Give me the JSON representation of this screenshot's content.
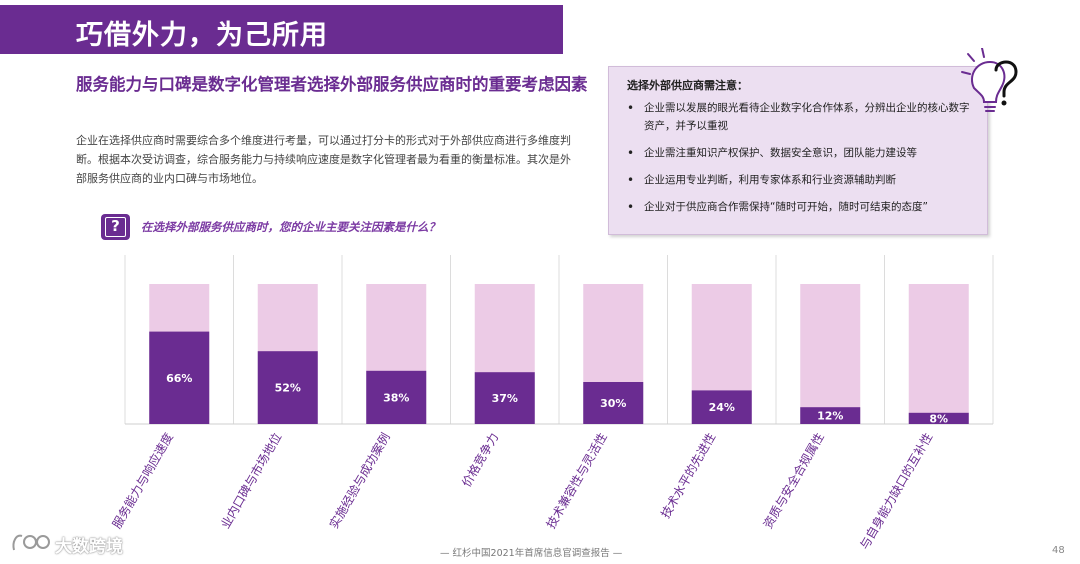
{
  "title": "巧借外力，为己所用",
  "headline": "服务能力与口碑是数字化管理者选择外部服务供应商时的重要考虑因素",
  "body_text": "企业在选择供应商时需要综合多个维度进行考量，可以通过打分卡的形式对于外部供应商进行多维度判断。根据本次受访调查，综合服务能力与持续响应速度是数字化管理者最为看重的衡量标准。其次是外部服务供应商的业内口碑与市场地位。",
  "question_icon": "?",
  "question": "在选择外部服务供应商时，您的企业主要关注因素是什么？",
  "note": {
    "title": "选择外部供应商需注意：",
    "items": [
      "企业需以发展的眼光看待企业数字化合作体系，分辨出企业的核心数字资产，并予以重视",
      "企业需注重知识产权保护、数据安全意识，团队能力建设等",
      "企业运用专业判断，利用专家体系和行业资源辅助判断",
      "企业对于供应商合作需保持“随时可开始，随时可结束的态度”"
    ]
  },
  "chart_data": {
    "type": "bar",
    "title": "在选择外部服务供应商时，您的企业主要关注因素是什么？",
    "categories": [
      "服务能力与响应速度",
      "业内口碑与市场地位",
      "实施经验与成功案例",
      "价格竞争力",
      "技术兼容性与灵活性",
      "技术水平的先进性",
      "资质与安全合规属性",
      "与自身能力缺口的互补性"
    ],
    "values": [
      66,
      52,
      38,
      37,
      30,
      24,
      12,
      8
    ],
    "value_labels": [
      "66%",
      "52%",
      "38%",
      "37%",
      "30%",
      "24%",
      "12%",
      "8%"
    ],
    "ylim": [
      0,
      100
    ],
    "xlabel": "",
    "ylabel": "",
    "colors": {
      "fill": "#6a2c91",
      "background": "#eccbe6",
      "label": "#ffffff"
    }
  },
  "watermark": "大数跨境",
  "footer": "— 红杉中国2021年首席信息官调查报告 —",
  "page_number": "48"
}
